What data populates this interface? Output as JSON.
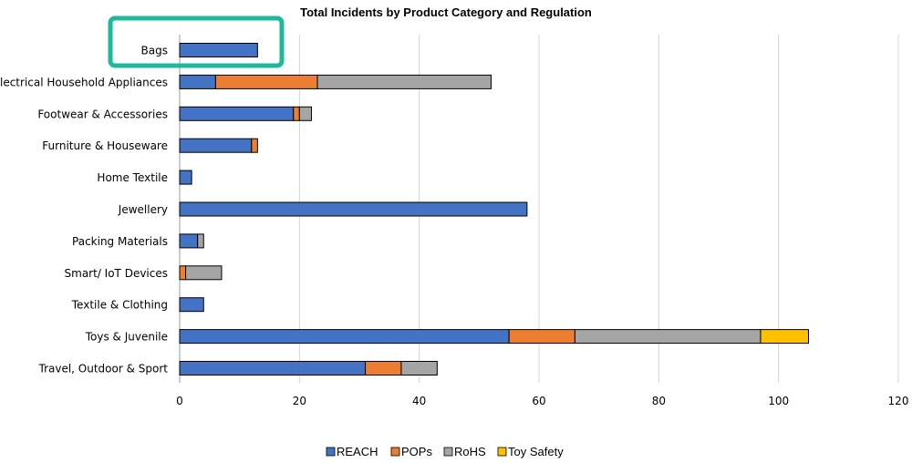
{
  "chart_data": {
    "type": "bar",
    "orientation": "horizontal",
    "stacked": true,
    "title": "Total Incidents by Product Category and Regulation",
    "xlabel": "",
    "ylabel": "",
    "xlim": [
      0,
      120
    ],
    "xticks": [
      0,
      20,
      40,
      60,
      80,
      100,
      120
    ],
    "grid": "vertical",
    "legend_position": "bottom",
    "categories": [
      "Bags",
      "Electrical Household Appliances",
      "Footwear & Accessories",
      "Furniture & Houseware",
      "Home Textile",
      "Jewellery",
      "Packing Materials",
      "Smart/ IoT Devices",
      "Textile & Clothing",
      "Toys & Juvenile",
      "Travel, Outdoor & Sport"
    ],
    "series": [
      {
        "name": "REACH",
        "color": "#4472C4",
        "values": [
          13,
          6,
          19,
          12,
          2,
          58,
          3,
          0,
          4,
          55,
          31
        ]
      },
      {
        "name": "POPs",
        "color": "#ED7D31",
        "values": [
          0,
          17,
          1,
          1,
          0,
          0,
          0,
          1,
          0,
          11,
          6
        ]
      },
      {
        "name": "RoHS",
        "color": "#A5A5A5",
        "values": [
          0,
          29,
          2,
          0,
          0,
          0,
          1,
          6,
          0,
          31,
          6
        ]
      },
      {
        "name": "Toy Safety",
        "color": "#FFC000",
        "values": [
          0,
          0,
          0,
          0,
          0,
          0,
          0,
          0,
          0,
          8,
          0
        ]
      }
    ],
    "highlight": {
      "category": "Bags",
      "color": "#1DB99A"
    }
  }
}
